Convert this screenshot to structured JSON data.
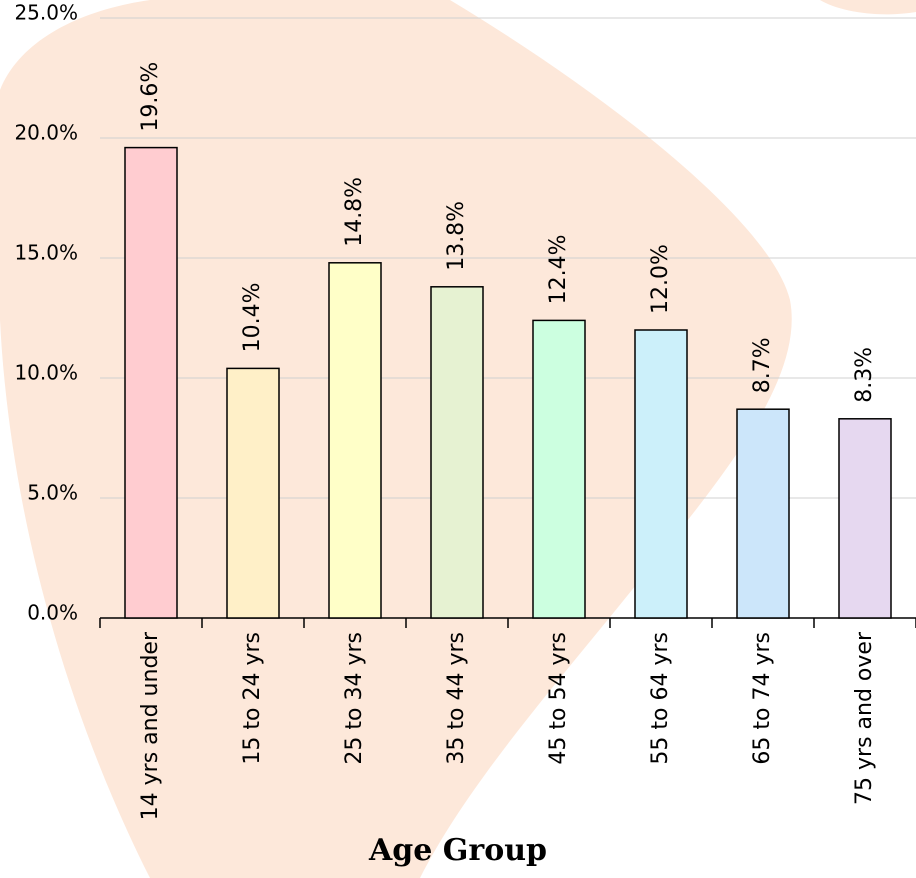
{
  "chart_data": {
    "type": "bar",
    "x_label": "Age Group",
    "categories": [
      "14 yrs and under",
      "15 to 24 yrs",
      "25 to 34 yrs",
      "35 to 44 yrs",
      "45 to 54 yrs",
      "55 to 64 yrs",
      "65 to 74 yrs",
      "75 yrs and over"
    ],
    "values": [
      19.6,
      10.4,
      14.8,
      13.8,
      12.4,
      12.0,
      8.7,
      8.3
    ],
    "value_labels": [
      "19.6%",
      "10.4%",
      "14.8%",
      "13.8%",
      "12.4%",
      "12.0%",
      "8.7%",
      "8.3%"
    ],
    "colors": [
      "#ffccd0",
      "#fff0c8",
      "#ffffc8",
      "#e6f2d2",
      "#ccffe0",
      "#ccf0fa",
      "#cce6fa",
      "#e6d8f0"
    ],
    "ylim": [
      0,
      25
    ],
    "yticks": [
      {
        "value": 0,
        "label": "0.0%"
      },
      {
        "value": 5,
        "label": "5.0%"
      },
      {
        "value": 10,
        "label": "10.0%"
      },
      {
        "value": 15,
        "label": "15.0%"
      },
      {
        "value": 20,
        "label": "20.0%"
      },
      {
        "value": 25,
        "label": "25.0%"
      }
    ],
    "grid": true
  }
}
